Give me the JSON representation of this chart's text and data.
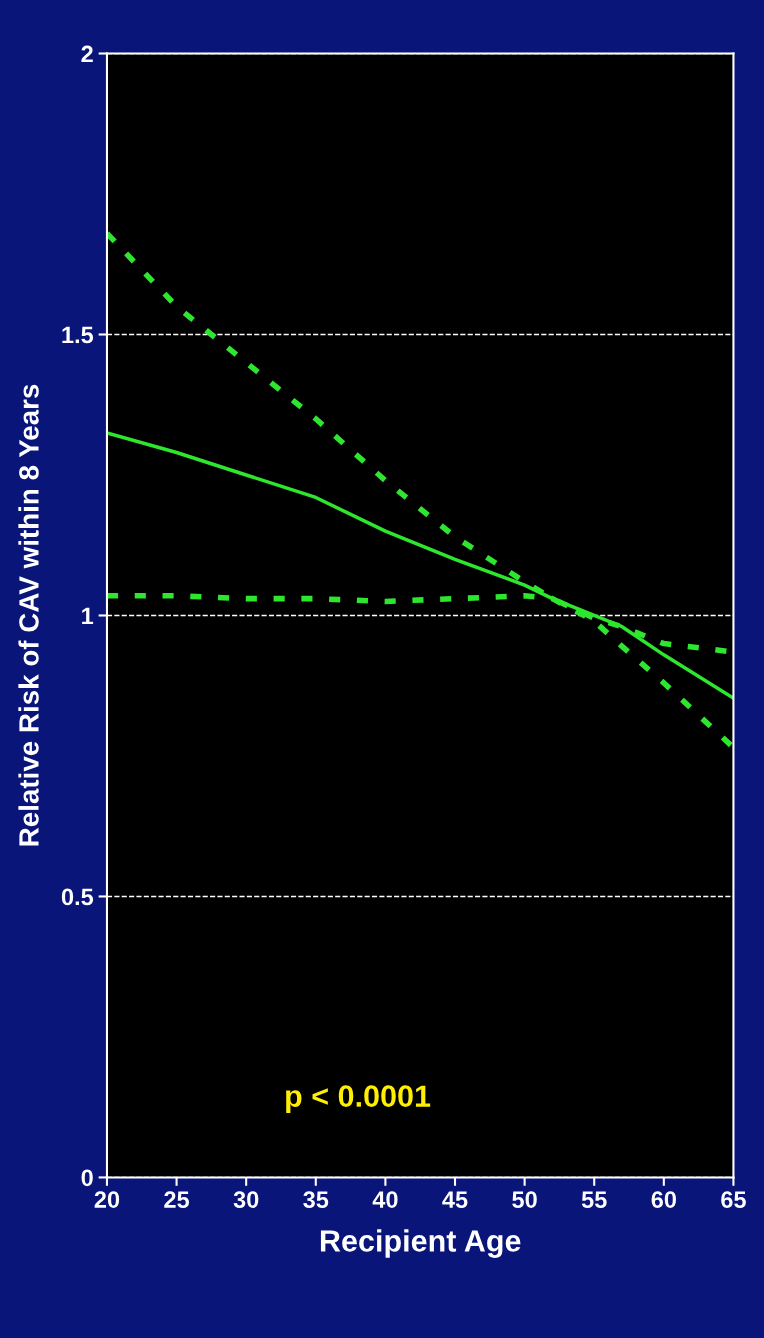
{
  "chart_data": {
    "type": "line",
    "xlabel": "Recipient Age",
    "ylabel": "Relative Risk of CAV within 8 Years",
    "x": [
      20,
      25,
      30,
      35,
      40,
      45,
      50,
      52,
      55,
      57,
      60,
      65
    ],
    "series": [
      {
        "color": "#2ee62e",
        "line_style": "solid",
        "values": [
          1.325,
          1.29,
          1.25,
          1.21,
          1.15,
          1.1,
          1.054,
          1.03,
          1.0,
          0.98,
          0.93,
          0.853
        ]
      },
      {
        "color": "#2ee62e",
        "line_style": "dashed",
        "values": [
          1.68,
          1.55,
          1.45,
          1.35,
          1.24,
          1.14,
          1.06,
          1.03,
          0.995,
          0.98,
          0.95,
          0.935
        ]
      },
      {
        "color": "#2ee62e",
        "line_style": "dashed",
        "values": [
          1.035,
          1.035,
          1.03,
          1.03,
          1.025,
          1.03,
          1.035,
          1.03,
          0.99,
          0.945,
          0.88,
          0.765
        ]
      }
    ],
    "xlim": [
      20,
      65
    ],
    "xticks": [
      20,
      25,
      30,
      35,
      40,
      45,
      50,
      55,
      60,
      65
    ],
    "ylim": [
      0,
      2
    ],
    "yticks": [
      0,
      0.5,
      1,
      1.5,
      2
    ],
    "grid": "y",
    "marker": "none",
    "legend": false,
    "annotations": [
      "p < 0.0001"
    ]
  }
}
